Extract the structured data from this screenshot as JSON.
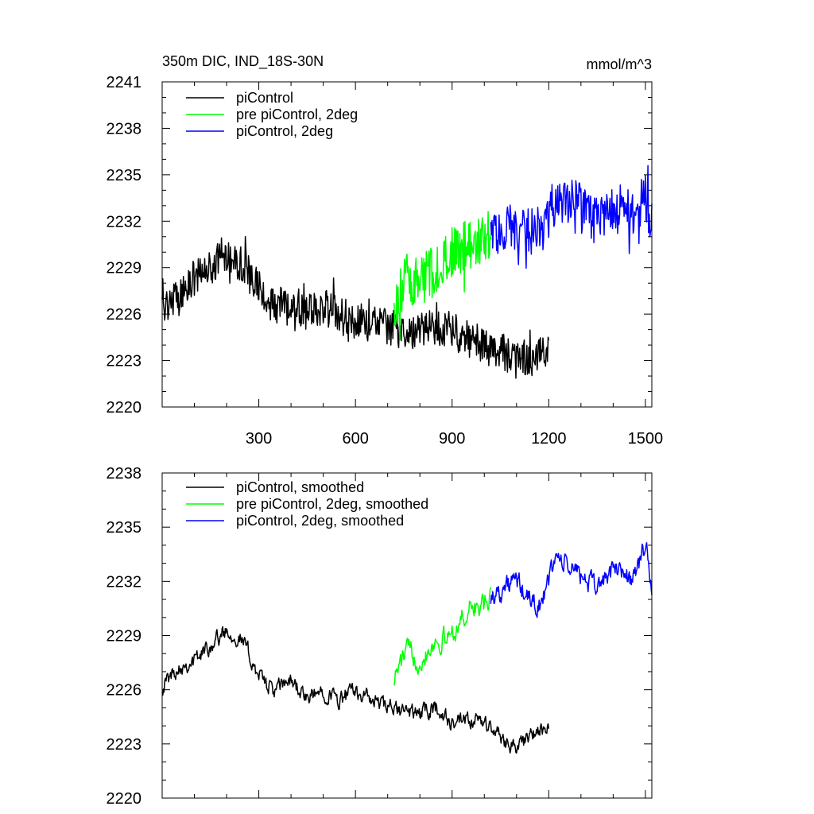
{
  "chart_data": [
    {
      "type": "line",
      "title": "350m DIC, IND_18S-30N",
      "units": "mmol/m^3",
      "xlim": [
        0,
        1520
      ],
      "ylim": [
        2220,
        2241
      ],
      "xticks": [
        300,
        600,
        900,
        1200,
        1500
      ],
      "xtick_labels": [
        "300",
        "600",
        "900",
        "1200",
        "1500"
      ],
      "yticks": [
        2220,
        2223,
        2226,
        2229,
        2232,
        2235,
        2238,
        2241
      ],
      "ytick_labels": [
        "2220",
        "2223",
        "2226",
        "2229",
        "2232",
        "2235",
        "2238",
        "2241"
      ],
      "legend_position": "top-left",
      "grid": false,
      "series": [
        {
          "name": "piControl",
          "color": "#000000",
          "x": [
            0,
            50,
            100,
            150,
            200,
            250,
            300,
            350,
            400,
            450,
            500,
            550,
            600,
            650,
            700,
            750,
            800,
            850,
            900,
            950,
            1000,
            1050,
            1100,
            1150,
            1200
          ],
          "y": [
            2226.6,
            2227.2,
            2228.3,
            2229.0,
            2230.0,
            2229.2,
            2227.6,
            2226.4,
            2226.8,
            2226.1,
            2226.5,
            2225.9,
            2225.6,
            2225.4,
            2225.2,
            2225.0,
            2224.8,
            2225.3,
            2224.9,
            2224.4,
            2224.0,
            2223.7,
            2222.9,
            2223.2,
            2223.6
          ],
          "noise": 1.2
        },
        {
          "name": "pre piControl, 2deg",
          "color": "#00ff00",
          "x": [
            720,
            760,
            800,
            840,
            880,
            920,
            960,
            1000,
            1020
          ],
          "y": [
            2226.2,
            2228.4,
            2228.0,
            2228.8,
            2229.4,
            2230.1,
            2230.6,
            2231.0,
            2231.1
          ],
          "noise": 1.7
        },
        {
          "name": "piControl, 2deg",
          "color": "#0000ff",
          "x": [
            1020,
            1060,
            1100,
            1140,
            1180,
            1220,
            1260,
            1300,
            1340,
            1380,
            1420,
            1460,
            1500,
            1520
          ],
          "y": [
            2231.0,
            2231.6,
            2231.6,
            2231.3,
            2231.5,
            2233.1,
            2233.4,
            2233.0,
            2232.1,
            2232.4,
            2233.0,
            2232.5,
            2233.6,
            2231.8
          ],
          "noise": 1.5
        }
      ]
    },
    {
      "type": "line",
      "title": "",
      "units": "",
      "xlim": [
        0,
        1520
      ],
      "ylim": [
        2220,
        2238
      ],
      "xticks": [
        300,
        600,
        900,
        1200,
        1500
      ],
      "yticks": [
        2220,
        2223,
        2226,
        2229,
        2232,
        2235,
        2238
      ],
      "ytick_labels": [
        "2220",
        "2223",
        "2226",
        "2229",
        "2232",
        "2235",
        "2238"
      ],
      "legend_position": "top-left",
      "grid": false,
      "series": [
        {
          "name": "piControl, smoothed",
          "color": "#000000",
          "x": [
            0,
            50,
            100,
            150,
            200,
            250,
            300,
            350,
            400,
            450,
            500,
            550,
            600,
            650,
            700,
            750,
            800,
            850,
            900,
            950,
            1000,
            1050,
            1100,
            1150,
            1200
          ],
          "y": [
            2226.2,
            2227.3,
            2227.6,
            2228.5,
            2229.3,
            2228.7,
            2226.8,
            2225.9,
            2226.6,
            2225.4,
            2226.0,
            2225.4,
            2226.0,
            2225.4,
            2225.0,
            2224.8,
            2224.7,
            2225.0,
            2224.1,
            2224.2,
            2224.2,
            2223.4,
            2222.8,
            2223.5,
            2223.8
          ],
          "noise": 0.6
        },
        {
          "name": "pre piControl, 2deg, smoothed",
          "color": "#00ff00",
          "x": [
            720,
            760,
            800,
            840,
            880,
            920,
            960,
            1000,
            1020
          ],
          "y": [
            2226.7,
            2228.2,
            2227.6,
            2228.6,
            2228.8,
            2229.6,
            2230.6,
            2230.6,
            2231.0
          ],
          "noise": 0.8
        },
        {
          "name": "piControl, 2deg, smoothed",
          "color": "#0000ff",
          "x": [
            1020,
            1060,
            1100,
            1140,
            1180,
            1220,
            1260,
            1300,
            1340,
            1380,
            1420,
            1460,
            1500,
            1520
          ],
          "y": [
            2231.2,
            2231.6,
            2232.0,
            2230.9,
            2230.7,
            2233.4,
            2232.8,
            2232.4,
            2231.6,
            2232.3,
            2232.8,
            2232.0,
            2234.0,
            2231.6
          ],
          "noise": 0.8
        }
      ]
    }
  ]
}
